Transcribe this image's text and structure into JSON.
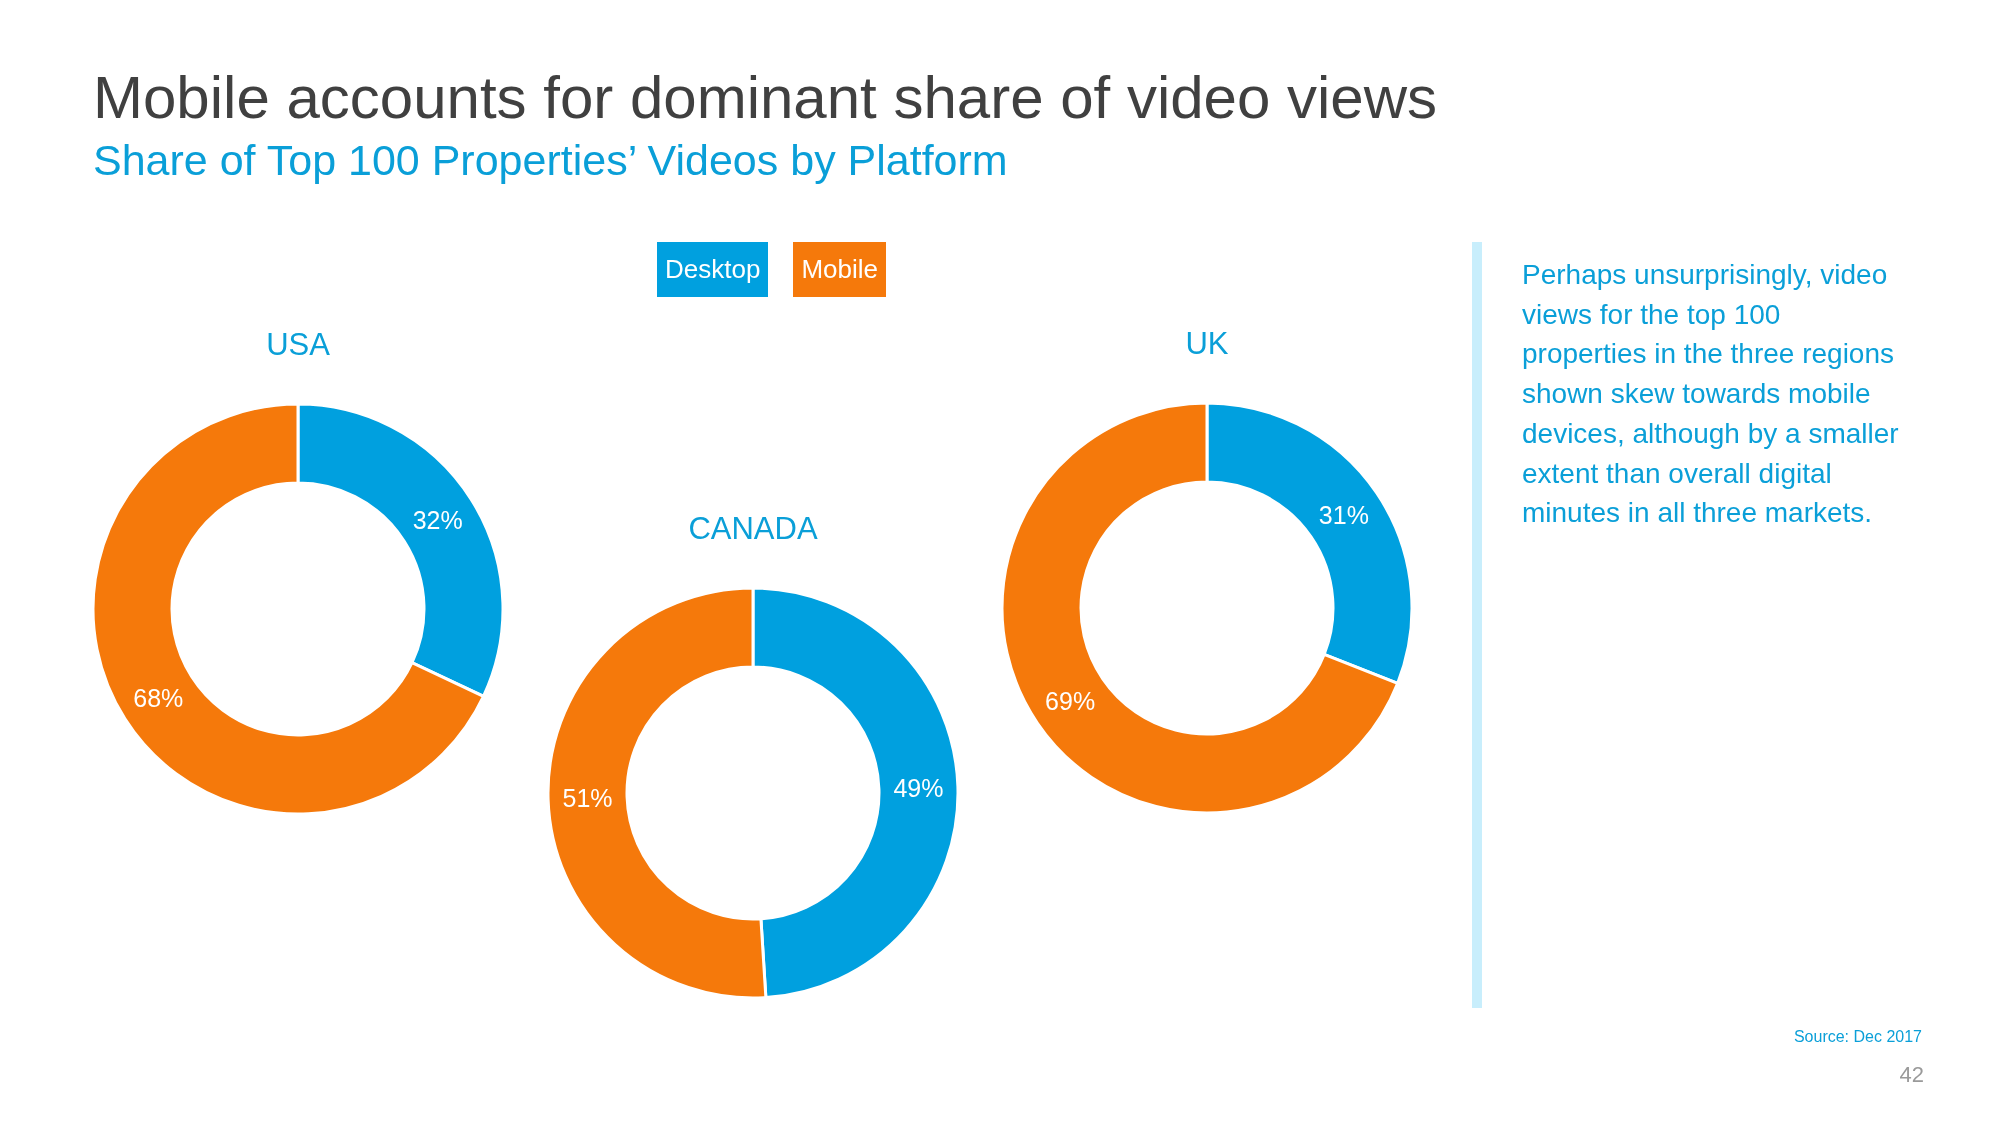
{
  "chart_data": [
    {
      "type": "other",
      "title": "Mobile accounts for dominant share of video views",
      "subtitle": "Share of Top 100 Properties’ Videos by Platform",
      "annotations": [
        "Perhaps unsurprisingly, video views for the top 100 properties in the three regions shown skew towards mobile devices, although by a smaller extent than overall digital minutes in all three markets.",
        "Source: Dec 2017",
        "42"
      ]
    },
    {
      "type": "donut",
      "title": "USA",
      "categories": [
        null,
        null
      ],
      "values": [
        32,
        68
      ],
      "colors": [
        "#00a0df",
        "#f5790b"
      ],
      "value_labels": [
        "32%",
        "68%"
      ]
    },
    {
      "type": "donut",
      "title": "CANADA",
      "categories": [
        "Desktop",
        "Mobile"
      ],
      "values": [
        49,
        51
      ],
      "colors": [
        "#00a0df",
        "#f5790b"
      ],
      "value_labels": [
        "49%",
        "51%"
      ],
      "legend": "top"
    },
    {
      "type": "donut",
      "title": "UK",
      "categories": [
        null,
        null
      ],
      "values": [
        31,
        69
      ],
      "colors": [
        "#00a0df",
        "#f5790b"
      ],
      "value_labels": [
        "31%",
        "69%"
      ]
    }
  ]
}
